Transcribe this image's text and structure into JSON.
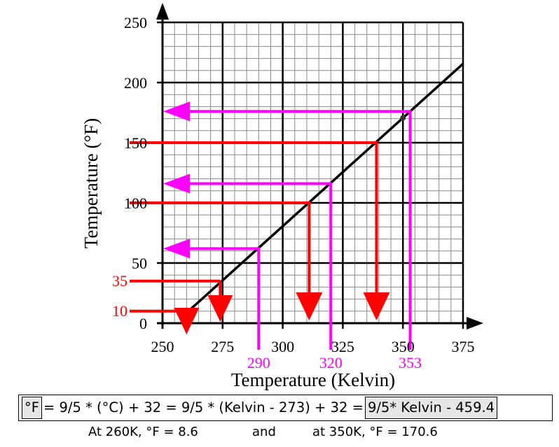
{
  "chart_data": {
    "type": "line",
    "xlabel": "Temperature (Kelvin)",
    "ylabel": "Temperature (°F)",
    "xlim": [
      250,
      375
    ],
    "ylim": [
      0,
      250
    ],
    "x_ticks": [
      250,
      275,
      300,
      325,
      350,
      375
    ],
    "y_ticks": [
      0,
      50,
      100,
      150,
      200,
      250
    ],
    "grid": true,
    "series": [
      {
        "x": [
          260,
          375
        ],
        "y": [
          8.6,
          215.6
        ]
      }
    ],
    "annotations": {
      "red_readings": [
        {
          "y": 10,
          "x": 260,
          "label": "10"
        },
        {
          "y": 35,
          "x": 274,
          "label": "35"
        },
        {
          "y": 100,
          "x": 311,
          "label": ""
        },
        {
          "y": 150,
          "x": 339,
          "label": ""
        }
      ],
      "magenta_readings": [
        {
          "x": 290,
          "y": 62,
          "label": "290"
        },
        {
          "x": 320,
          "y": 116,
          "label": "320"
        },
        {
          "x": 353,
          "y": 176,
          "label": "353"
        }
      ],
      "marked_point": {
        "x": 350,
        "y": 170.6
      }
    },
    "colors": {
      "red": "#ff0000",
      "magenta": "#ff00ff",
      "line": "#000000"
    }
  },
  "formula": {
    "part1": "°F",
    "part2": "= 9/5 * (°C) + 32 = 9/5 * (Kelvin - 273) + 32 =",
    "part3": "9/5* Kelvin - 459.4"
  },
  "footer": {
    "left": "At 260K, °F = 8.6",
    "middle": "and",
    "right": "at 350K, °F = 170.6"
  }
}
